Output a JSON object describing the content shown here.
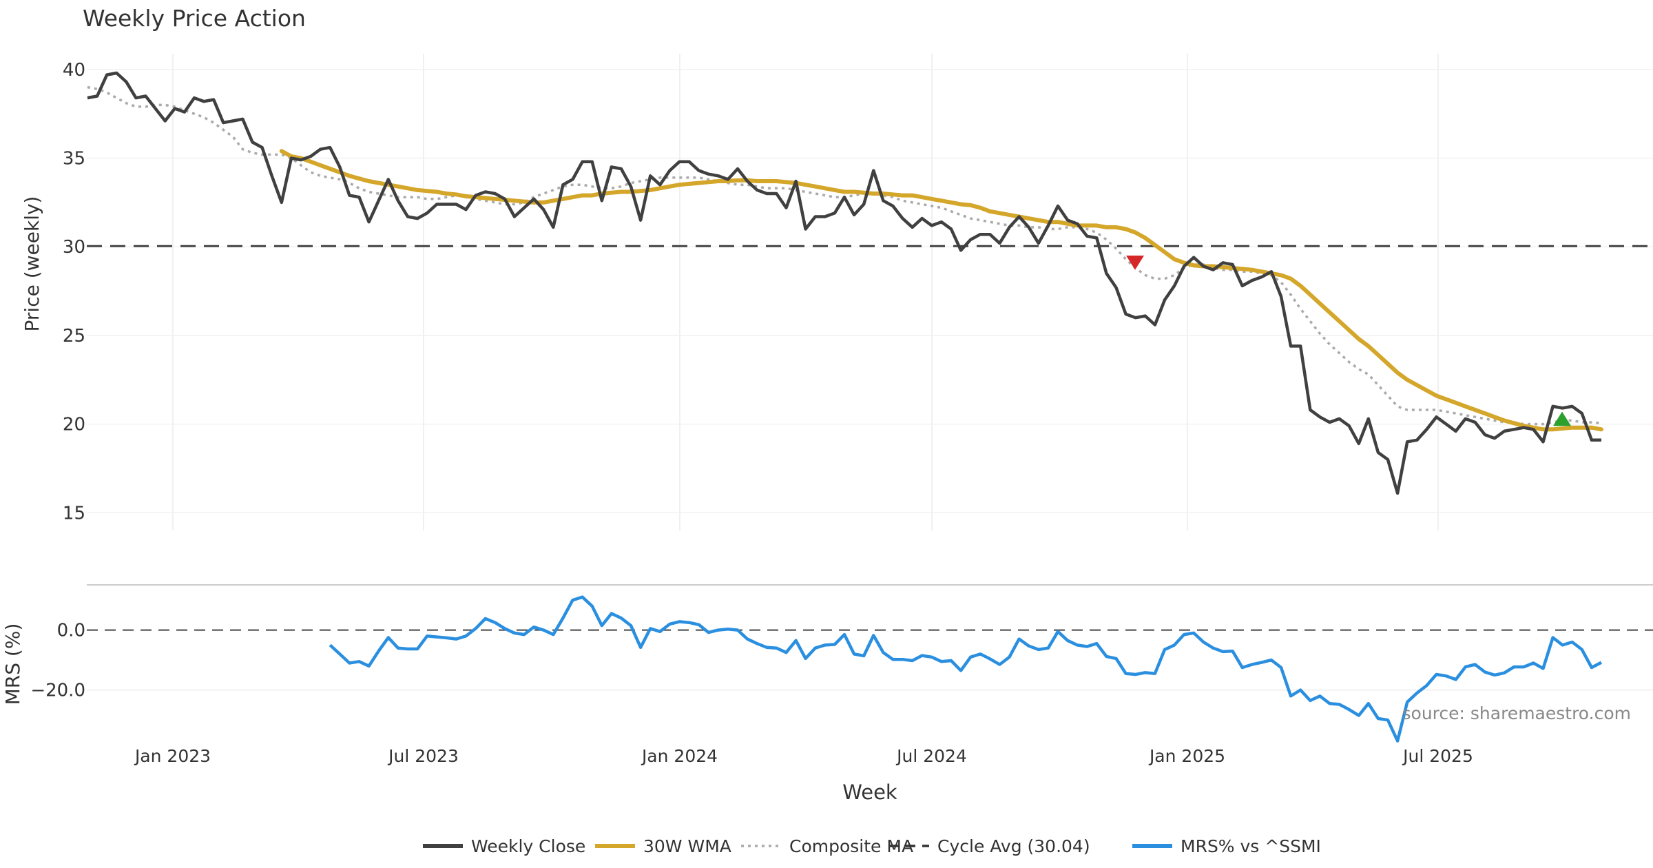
{
  "chart_data": {
    "type": "line",
    "title": "Weekly Price Action",
    "xlabel": "Week",
    "watermark": "source: sharemaestro.com",
    "x_ticks": [
      "Jan 2023",
      "Jul 2023",
      "Jan 2024",
      "Jul 2024",
      "Jan 2025",
      "Jul 2025"
    ],
    "price_panel": {
      "ylabel": "Price (weekly)",
      "ylim": [
        14,
        41.2
      ],
      "y_ticks": [
        "15",
        "20",
        "25",
        "30",
        "35",
        "40"
      ],
      "y_tick_values": [
        15,
        20,
        25,
        30,
        35,
        40
      ],
      "cycle_avg": 30.04,
      "weekly_close": [
        38.4,
        38.5,
        39.7,
        39.8,
        39.3,
        38.4,
        38.5,
        37.8,
        37.1,
        37.8,
        37.6,
        38.4,
        38.2,
        38.3,
        37.0,
        37.1,
        37.2,
        35.9,
        35.6,
        34.0,
        32.5,
        35.0,
        34.9,
        35.1,
        35.5,
        35.6,
        34.5,
        32.9,
        32.8,
        31.4,
        32.6,
        33.8,
        32.6,
        31.7,
        31.6,
        31.9,
        32.4,
        32.4,
        32.4,
        32.1,
        32.9,
        33.1,
        33.0,
        32.7,
        31.7,
        32.2,
        32.7,
        32.1,
        31.1,
        33.5,
        33.8,
        34.8,
        34.8,
        32.6,
        34.5,
        34.4,
        33.4,
        31.5,
        34.0,
        33.5,
        34.3,
        34.8,
        34.8,
        34.3,
        34.1,
        34.0,
        33.8,
        34.4,
        33.7,
        33.2,
        33.0,
        33.0,
        32.2,
        33.7,
        31.0,
        31.7,
        31.7,
        31.9,
        32.8,
        31.8,
        32.4,
        34.3,
        32.6,
        32.3,
        31.6,
        31.1,
        31.6,
        31.2,
        31.4,
        31.0,
        29.8,
        30.4,
        30.7,
        30.7,
        30.2,
        31.1,
        31.7,
        31.1,
        30.2,
        31.2,
        32.3,
        31.5,
        31.3,
        30.6,
        30.5,
        28.5,
        27.7,
        26.2,
        26.0,
        26.1,
        25.6,
        27.0,
        27.8,
        28.9,
        29.4,
        28.9,
        28.7,
        29.1,
        29.0,
        27.8,
        28.1,
        28.3,
        28.6,
        27.2,
        24.4,
        24.4,
        20.8,
        20.4,
        20.1,
        20.3,
        19.9,
        18.9,
        20.3,
        18.4,
        18.0,
        16.1,
        19.0,
        19.1,
        19.7,
        20.4,
        20.0,
        19.6,
        20.3,
        20.1,
        19.4,
        19.2,
        19.6,
        19.7,
        19.8,
        19.7,
        19.0,
        21.0,
        20.9,
        21.0,
        20.6,
        19.1,
        19.1
      ],
      "wma_30w": [
        35.4,
        35.1,
        35.0,
        34.8,
        34.6,
        34.4,
        34.2,
        34.0,
        33.85,
        33.7,
        33.6,
        33.5,
        33.4,
        33.3,
        33.2,
        33.15,
        33.1,
        33.0,
        32.95,
        32.85,
        32.8,
        32.75,
        32.7,
        32.65,
        32.6,
        32.55,
        32.5,
        32.5,
        32.6,
        32.7,
        32.8,
        32.9,
        32.9,
        33.0,
        33.05,
        33.1,
        33.1,
        33.15,
        33.2,
        33.3,
        33.4,
        33.5,
        33.55,
        33.6,
        33.65,
        33.7,
        33.7,
        33.75,
        33.75,
        33.7,
        33.7,
        33.7,
        33.65,
        33.6,
        33.5,
        33.4,
        33.3,
        33.2,
        33.1,
        33.1,
        33.05,
        33.0,
        33.0,
        32.95,
        32.9,
        32.9,
        32.8,
        32.7,
        32.6,
        32.5,
        32.4,
        32.35,
        32.2,
        32.0,
        31.9,
        31.8,
        31.7,
        31.6,
        31.5,
        31.4,
        31.4,
        31.3,
        31.2,
        31.2,
        31.2,
        31.1,
        31.1,
        31.0,
        30.8,
        30.5,
        30.1,
        29.7,
        29.3,
        29.1,
        28.95,
        28.9,
        28.9,
        28.85,
        28.8,
        28.75,
        28.7,
        28.6,
        28.5,
        28.4,
        28.2,
        27.8,
        27.3,
        26.8,
        26.3,
        25.8,
        25.3,
        24.8,
        24.4,
        23.9,
        23.4,
        22.9,
        22.5,
        22.2,
        21.9,
        21.6,
        21.4,
        21.2,
        21.0,
        20.8,
        20.6,
        20.4,
        20.2,
        20.05,
        19.9,
        19.8,
        19.7,
        19.7,
        19.75,
        19.8,
        19.8,
        19.8,
        19.7
      ],
      "composite_ma": [
        39.0,
        38.9,
        38.7,
        38.4,
        38.1,
        37.9,
        37.9,
        38.0,
        38.0,
        37.9,
        37.7,
        37.5,
        37.3,
        37.0,
        36.6,
        36.2,
        35.5,
        35.3,
        35.2,
        35.2,
        35.2,
        35.0,
        34.6,
        34.2,
        34.0,
        33.9,
        33.8,
        33.6,
        33.3,
        33.1,
        33.0,
        32.9,
        32.8,
        32.8,
        32.8,
        32.7,
        32.7,
        32.8,
        32.9,
        32.8,
        32.7,
        32.6,
        32.5,
        32.4,
        32.4,
        32.5,
        32.8,
        33.0,
        33.2,
        33.4,
        33.5,
        33.5,
        33.4,
        33.3,
        33.3,
        33.4,
        33.6,
        33.7,
        33.8,
        33.9,
        33.9,
        33.9,
        33.9,
        33.9,
        33.8,
        33.7,
        33.6,
        33.5,
        33.5,
        33.4,
        33.3,
        33.3,
        33.3,
        33.2,
        33.1,
        33.0,
        32.9,
        32.8,
        32.8,
        32.9,
        33.0,
        33.0,
        32.9,
        32.8,
        32.6,
        32.5,
        32.4,
        32.3,
        32.2,
        32.0,
        31.8,
        31.6,
        31.5,
        31.4,
        31.3,
        31.2,
        31.2,
        31.1,
        31.1,
        31.0,
        31.0,
        31.1,
        31.1,
        31.0,
        30.8,
        30.4,
        29.9,
        29.3,
        28.8,
        28.4,
        28.2,
        28.2,
        28.4,
        28.8,
        29.0,
        29.0,
        28.8,
        28.7,
        28.7,
        28.6,
        28.6,
        28.5,
        28.4,
        28.0,
        27.3,
        26.5,
        25.8,
        25.1,
        24.5,
        24.0,
        23.5,
        23.1,
        22.8,
        22.2,
        21.6,
        21.0,
        20.8,
        20.8,
        20.8,
        20.8,
        20.7,
        20.6,
        20.5,
        20.4,
        20.3,
        20.2,
        20.1,
        20.1,
        20.0,
        20.0,
        20.0,
        20.1,
        20.2,
        20.2,
        20.1,
        20.1,
        20.05
      ],
      "markers": [
        {
          "type": "sell",
          "color": "#d62728",
          "price": 29.1
        },
        {
          "type": "buy",
          "color": "#2ca02c",
          "price": 20.3
        }
      ]
    },
    "mrs_panel": {
      "ylabel": "MRS (%)",
      "ylim": [
        -38,
        13
      ],
      "y_ticks": [
        "0.0",
        "−20.0"
      ],
      "y_tick_values": [
        0,
        -20
      ],
      "zero_line": 0,
      "mrs_vs_ssmi": [
        -5.0,
        -8.0,
        -11.0,
        -10.5,
        -12.0,
        -7.0,
        -2.5,
        -6.0,
        -6.3,
        -6.3,
        -2.0,
        -2.3,
        -2.6,
        -3.0,
        -2.0,
        0.5,
        3.8,
        2.5,
        0.5,
        -1.0,
        -1.5,
        1.0,
        0.0,
        -1.5,
        4.0,
        10.0,
        11.0,
        8.0,
        1.5,
        5.5,
        4.0,
        1.5,
        -5.8,
        0.5,
        -0.5,
        2.0,
        2.8,
        2.5,
        1.8,
        -0.8,
        0.0,
        0.3,
        0.0,
        -3.0,
        -4.5,
        -5.8,
        -6.0,
        -7.5,
        -3.5,
        -9.5,
        -6.0,
        -5.0,
        -4.8,
        -1.5,
        -8.0,
        -8.6,
        -1.8,
        -7.5,
        -9.8,
        -9.8,
        -10.2,
        -8.5,
        -9.0,
        -10.5,
        -10.2,
        -13.5,
        -9.0,
        -8.0,
        -9.6,
        -11.5,
        -9.0,
        -3.0,
        -5.3,
        -6.5,
        -6.0,
        -0.5,
        -3.5,
        -5.0,
        -5.5,
        -4.5,
        -8.8,
        -9.5,
        -14.5,
        -14.8,
        -14.2,
        -14.5,
        -6.5,
        -5.0,
        -1.5,
        -1.0,
        -4.0,
        -6.0,
        -7.2,
        -7.0,
        -12.5,
        -11.5,
        -10.8,
        -10.0,
        -12.5,
        -22.0,
        -20.0,
        -23.5,
        -22.0,
        -24.5,
        -24.8,
        -26.5,
        -28.5,
        -24.5,
        -29.5,
        -30.0,
        -37.0,
        -24.0,
        -21.0,
        -18.5,
        -14.8,
        -15.3,
        -16.5,
        -12.3,
        -11.5,
        -14.0,
        -15.0,
        -14.3,
        -12.3,
        -12.3,
        -11.0,
        -12.8,
        -2.5,
        -5.0,
        -4.0,
        -6.5,
        -12.5,
        -10.8
      ]
    },
    "legend": {
      "position": "bottom-center",
      "entries": [
        {
          "label": "Weekly Close",
          "color": "#404040",
          "style": "solid"
        },
        {
          "label": "30W WMA",
          "color": "#d4a62a",
          "style": "solid"
        },
        {
          "label": "Composite MA",
          "color": "#aaaaaa",
          "style": "dotted"
        },
        {
          "label": "Cycle Avg (30.04)",
          "color": "#333333",
          "style": "dashed"
        },
        {
          "label": "MRS% vs ^SSMI",
          "color": "#2b8fe0",
          "style": "solid"
        }
      ]
    }
  }
}
